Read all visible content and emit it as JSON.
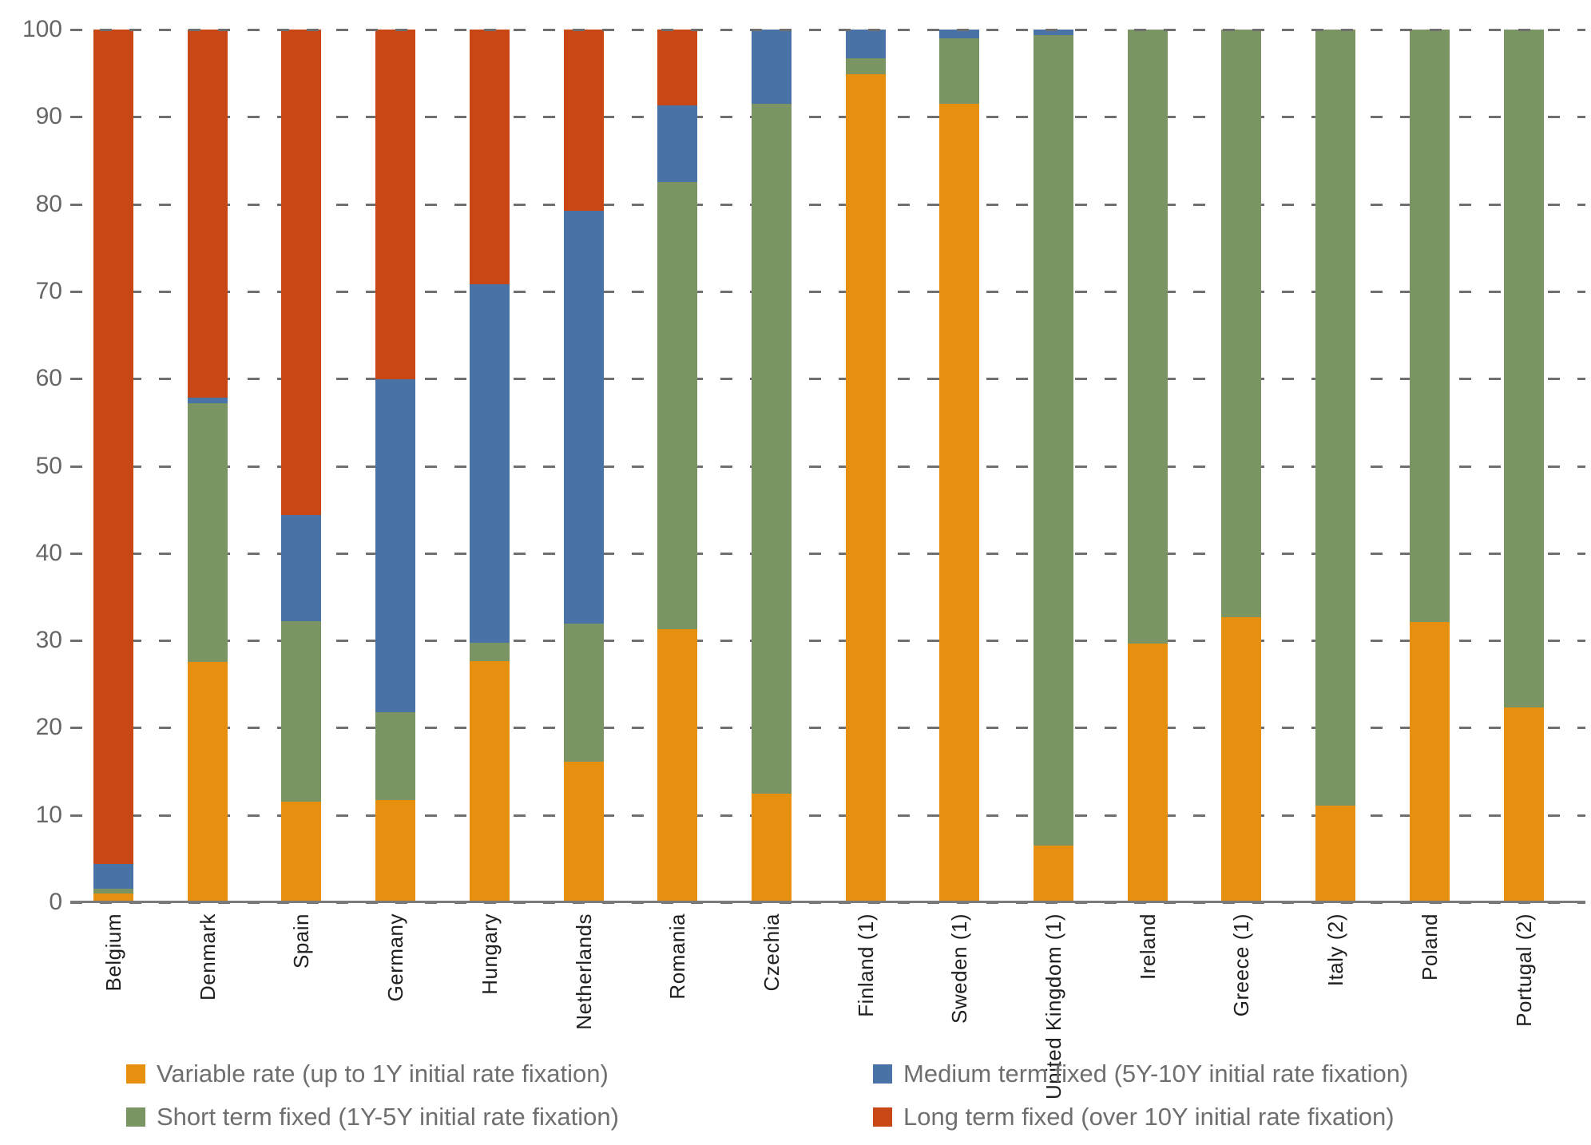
{
  "chart_data": {
    "type": "bar",
    "stacked": true,
    "title": "",
    "xlabel": "",
    "ylabel": "",
    "ylim": [
      0,
      100
    ],
    "ytick_step": 10,
    "yticks": [
      0,
      10,
      20,
      30,
      40,
      50,
      60,
      70,
      80,
      90,
      100
    ],
    "grid": "horizontal-dashed",
    "legend_position": "bottom-two-columns",
    "categories": [
      "Belgium",
      "Denmark",
      "Spain",
      "Germany",
      "Hungary",
      "Netherlands",
      "Romania",
      "Czechia",
      "Finland (1)",
      "Sweden (1)",
      "United Kingdom (1)",
      "Ireland",
      "Greece (1)",
      "Italy (2)",
      "Poland",
      "Portugal (2)"
    ],
    "series": [
      {
        "name": "Variable rate (up to 1Y initial rate fixation)",
        "color_key": "variable",
        "values": [
          1.0,
          27.5,
          11.5,
          11.7,
          27.6,
          16.1,
          31.3,
          12.4,
          94.9,
          91.5,
          6.5,
          29.6,
          32.7,
          11.1,
          32.1,
          22.3
        ]
      },
      {
        "name": "Short term fixed (1Y-5Y initial rate fixation)",
        "color_key": "short",
        "values": [
          0.6,
          29.7,
          20.7,
          10.1,
          2.1,
          15.8,
          51.2,
          79.1,
          1.8,
          7.5,
          92.9,
          70.4,
          67.3,
          88.9,
          67.9,
          77.7
        ]
      },
      {
        "name": "Medium term fixed (5Y-10Y initial rate fixation)",
        "color_key": "medium",
        "values": [
          2.8,
          0.6,
          12.2,
          38.1,
          41.1,
          47.3,
          8.8,
          8.5,
          3.3,
          1.0,
          0.6,
          0,
          0,
          0,
          0,
          0
        ]
      },
      {
        "name": "Long term fixed (over 10Y initial rate fixation)",
        "color_key": "long",
        "values": [
          95.6,
          42.2,
          55.6,
          40.1,
          29.2,
          20.8,
          8.7,
          0,
          0,
          0,
          0,
          0,
          0,
          0,
          0,
          0
        ]
      }
    ]
  },
  "legend": {
    "items": [
      {
        "label": "Variable rate (up to 1Y initial rate fixation)",
        "color_key": "variable",
        "row": 0,
        "col": 0
      },
      {
        "label": "Medium term fixed (5Y-10Y initial rate fixation)",
        "color_key": "medium",
        "row": 0,
        "col": 1
      },
      {
        "label": "Short term fixed (1Y-5Y initial rate fixation)",
        "color_key": "short",
        "row": 1,
        "col": 0
      },
      {
        "label": "Long term fixed (over 10Y initial rate fixation)",
        "color_key": "long",
        "row": 1,
        "col": 1
      }
    ]
  },
  "colors": {
    "variable": "#E78F0E",
    "short": "#7B9464",
    "medium": "#4973A6",
    "long": "#C94714",
    "gridline": "#6F6F6F",
    "axis": "#7A7A7A",
    "ytick_text": "#666666",
    "xlabel_text": "#1F1F1F",
    "legend_text": "#6F6F6F",
    "background": "#FFFFFF"
  }
}
